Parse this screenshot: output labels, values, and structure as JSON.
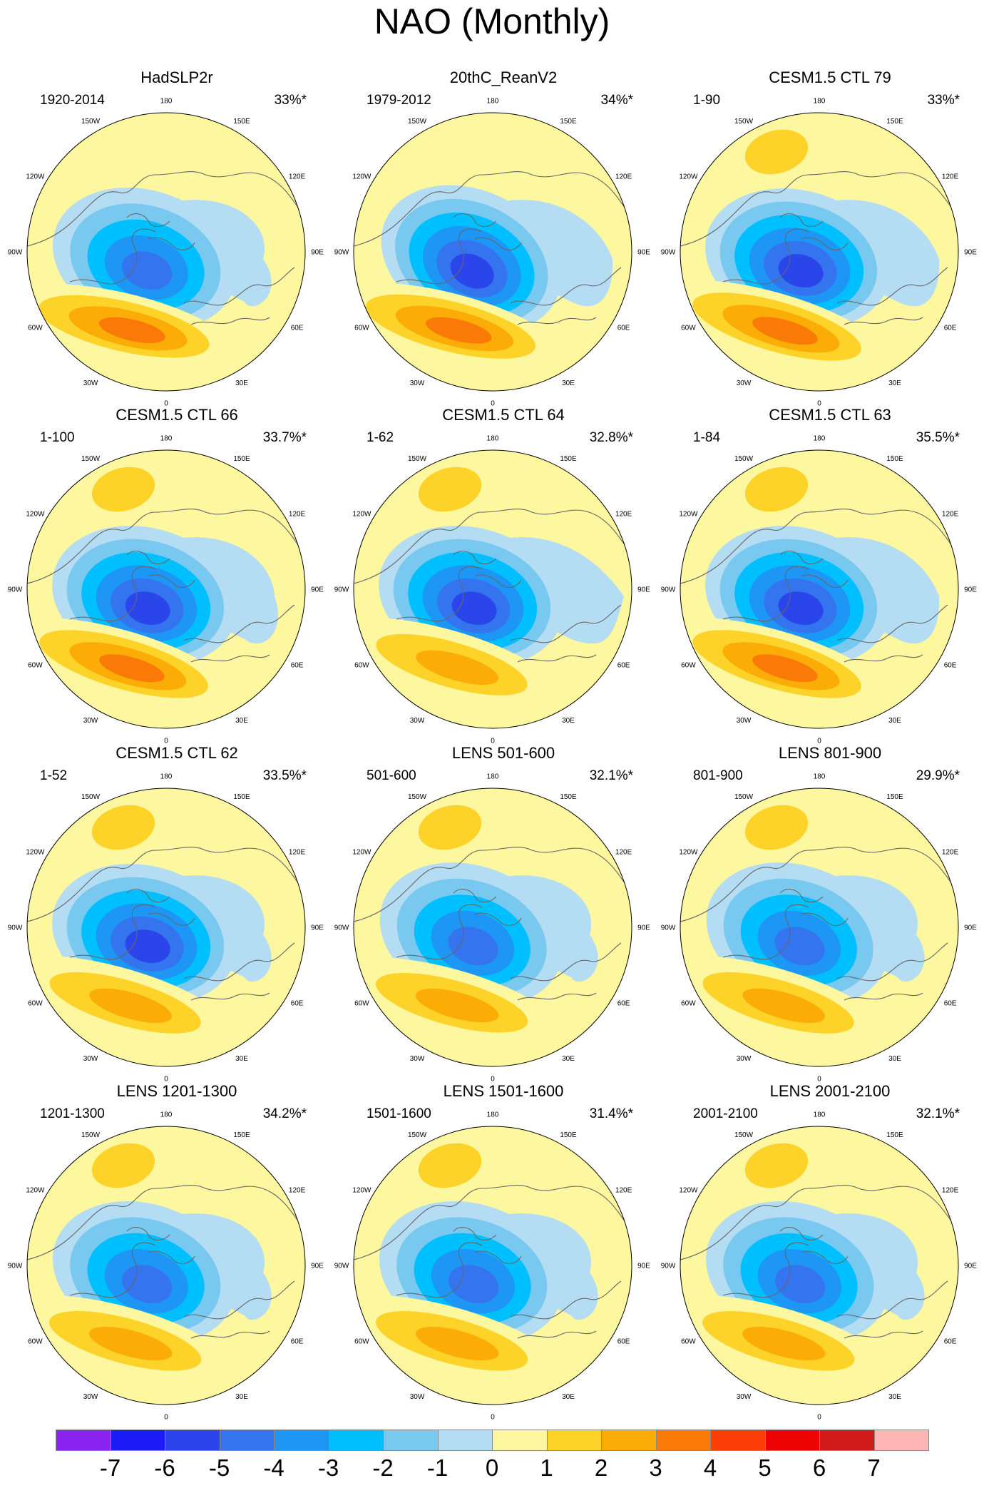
{
  "title": "NAO (Monthly)",
  "colors": {
    "levels": [
      "#8a22f0",
      "#1a1bf7",
      "#2a46ea",
      "#3474ee",
      "#1d96f5",
      "#00bfff",
      "#79c8f0",
      "#b4dcf2",
      "#fdf7a0",
      "#fdd32a",
      "#fbac07",
      "#f97a06",
      "#fb3d06",
      "#ed0302",
      "#cf1c1b",
      "#fdb5b5"
    ],
    "coast": "#666666",
    "boundary": "#000000"
  },
  "colorbar": {
    "labels": [
      "-7",
      "-6",
      "-5",
      "-4",
      "-3",
      "-2",
      "-1",
      "0",
      "1",
      "2",
      "3",
      "4",
      "5",
      "6",
      "7"
    ]
  },
  "lon_labels": [
    "180",
    "150E",
    "120E",
    "90E",
    "60E",
    "30E",
    "0",
    "30W",
    "60W",
    "90W",
    "120W",
    "150W"
  ],
  "panels": [
    {
      "title": "HadSLP2r",
      "period": "1920-2014",
      "variance": "33%*",
      "pattern": {
        "low": -5,
        "high": 4,
        "north_pos": false,
        "low_lon": 18,
        "high_lon": -25,
        "ne_fill": 0.6
      }
    },
    {
      "title": "20thC_ReanV2",
      "period": "1979-2012",
      "variance": "34%*",
      "pattern": {
        "low": -6,
        "high": 4,
        "north_pos": false,
        "low_lon": 25,
        "high_lon": -20,
        "ne_fill": 0.8
      }
    },
    {
      "title": "CESM1.5 CTL 79",
      "period": "1-90",
      "variance": "33%*",
      "pattern": {
        "low": -6,
        "high": 4,
        "north_pos": true,
        "low_lon": 15,
        "high_lon": -10,
        "ne_fill": 0.8
      }
    },
    {
      "title": "CESM1.5 CTL 66",
      "period": "1-100",
      "variance": "33.7%*",
      "pattern": {
        "low": -6,
        "high": 4,
        "north_pos": true,
        "low_lon": 15,
        "high_lon": -10,
        "ne_fill": 0.7
      }
    },
    {
      "title": "CESM1.5 CTL 64",
      "period": "1-62",
      "variance": "32.8%*",
      "pattern": {
        "low": -6,
        "high": 3,
        "north_pos": true,
        "low_lon": 15,
        "high_lon": -10,
        "ne_fill": 0.9
      }
    },
    {
      "title": "CESM1.5 CTL 63",
      "period": "1-84",
      "variance": "35.5%*",
      "pattern": {
        "low": -6,
        "high": 4,
        "north_pos": true,
        "low_lon": 15,
        "high_lon": -10,
        "ne_fill": 0.8
      }
    },
    {
      "title": "CESM1.5 CTL 62",
      "period": "1-52",
      "variance": "33.5%*",
      "pattern": {
        "low": -6,
        "high": 3,
        "north_pos": true,
        "low_lon": 15,
        "high_lon": -10,
        "ne_fill": 0.6
      }
    },
    {
      "title": "LENS 501-600",
      "period": "501-600",
      "variance": "32.1%*",
      "pattern": {
        "low": -5,
        "high": 3,
        "north_pos": true,
        "low_lon": 20,
        "high_lon": -15,
        "ne_fill": 0.6
      }
    },
    {
      "title": "LENS 801-900",
      "period": "801-900",
      "variance": "29.9%*",
      "pattern": {
        "low": -5,
        "high": 3,
        "north_pos": true,
        "low_lon": 20,
        "high_lon": -10,
        "ne_fill": 0.6
      }
    },
    {
      "title": "LENS 1201-1300",
      "period": "1201-1300",
      "variance": "34.2%*",
      "pattern": {
        "low": -5,
        "high": 3,
        "north_pos": true,
        "low_lon": 18,
        "high_lon": -15,
        "ne_fill": 0.6
      }
    },
    {
      "title": "LENS 1501-1600",
      "period": "1501-1600",
      "variance": "31.4%*",
      "pattern": {
        "low": -5,
        "high": 3,
        "north_pos": true,
        "low_lon": 18,
        "high_lon": -15,
        "ne_fill": 0.6
      }
    },
    {
      "title": "LENS 2001-2100",
      "period": "2001-2100",
      "variance": "32.1%*",
      "pattern": {
        "low": -5,
        "high": 3,
        "north_pos": true,
        "low_lon": 18,
        "high_lon": -15,
        "ne_fill": 0.6
      }
    }
  ]
}
